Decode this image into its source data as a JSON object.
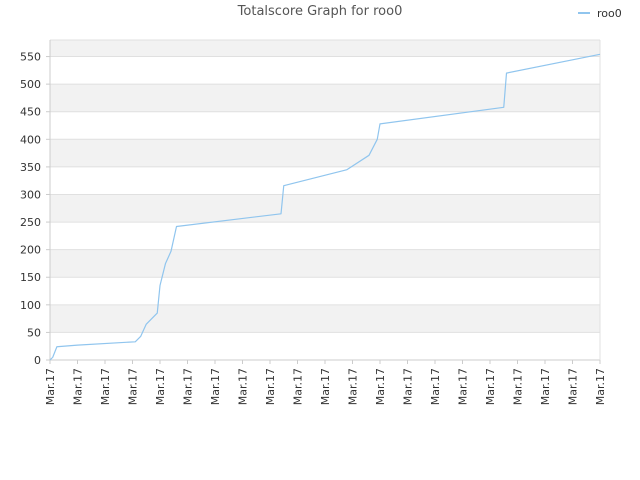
{
  "chart_data": {
    "type": "line",
    "title": "Totalscore Graph for roo0",
    "xlabel": "",
    "ylabel": "",
    "ylim": [
      0,
      580
    ],
    "yticks": [
      0,
      50,
      100,
      150,
      200,
      250,
      300,
      350,
      400,
      450,
      500,
      550
    ],
    "xtick_labels": [
      "Mar.17",
      "Mar.17",
      "Mar.17",
      "Mar.17",
      "Mar.17",
      "Mar.17",
      "Mar.17",
      "Mar.17",
      "Mar.17",
      "Mar.17",
      "Mar.17",
      "Mar.17",
      "Mar.17",
      "Mar.17",
      "Mar.17",
      "Mar.17",
      "Mar.17",
      "Mar.17",
      "Mar.17",
      "Mar.17",
      "Mar.17"
    ],
    "grid": true,
    "legend_position": "top-right",
    "series": [
      {
        "name": "roo0",
        "color": "#90c5ee",
        "x": [
          0,
          0.1,
          0.25,
          1.0,
          3.1,
          3.3,
          3.5,
          3.9,
          4.0,
          4.2,
          4.4,
          4.6,
          8.4,
          8.5,
          10.8,
          11.6,
          11.9,
          12.0,
          16.5,
          16.6,
          20.0
        ],
        "y": [
          0,
          5,
          24,
          27,
          33,
          43,
          65,
          85,
          135,
          175,
          197,
          242,
          265,
          316,
          345,
          371,
          400,
          428,
          458,
          520,
          554
        ]
      }
    ]
  }
}
